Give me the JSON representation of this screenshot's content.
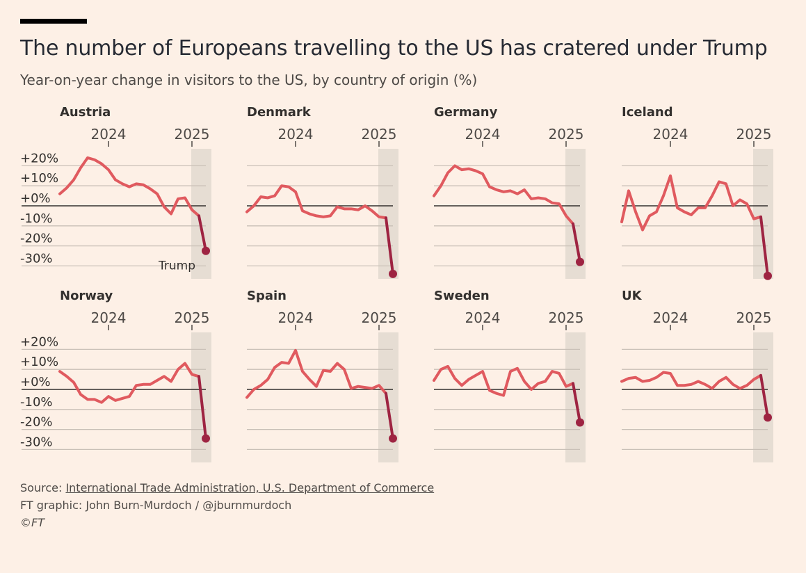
{
  "header": {
    "title": "The number of Europeans travelling to the US has cratered under Trump",
    "subtitle": "Year-on-year change in visitors to the US, by country of origin (%)"
  },
  "footer": {
    "source_label": "Source: ",
    "source_link": "International Trade Administration, U.S. Department of Commerce",
    "credit": "FT graphic: John Burn-Murdoch / @jburnmurdoch",
    "copyright": "©FT"
  },
  "colors": {
    "background": "#fdf0e6",
    "line": "#e05a5f",
    "trump_line": "#9e2442",
    "shade": "#e6ddd3",
    "grid": "#c9c0b7",
    "zero_line": "#33302e"
  },
  "chart_data": {
    "type": "line",
    "x_start": "2023-06",
    "x_end": "2025-03",
    "x_ticks": [
      {
        "label": "2024",
        "at": "2024-01"
      },
      {
        "label": "2025",
        "at": "2025-01"
      }
    ],
    "ylim": [
      -36,
      26
    ],
    "y_ticks": [
      {
        "value": 20,
        "label": "+20%"
      },
      {
        "value": 10,
        "label": "+10%"
      },
      {
        "value": 0,
        "label": "+0%"
      },
      {
        "value": -10,
        "label": "-10%"
      },
      {
        "value": -20,
        "label": "-20%"
      },
      {
        "value": -30,
        "label": "-30%"
      }
    ],
    "grid": true,
    "shaded_period": {
      "start": "2025-02",
      "end": "2025-03"
    },
    "annotation": {
      "text": "Trump",
      "panel": "Austria"
    },
    "series": [
      {
        "name": "Austria",
        "values": [
          6,
          9,
          13,
          19,
          24,
          23,
          21,
          18,
          13,
          11,
          9.5,
          11,
          10.5,
          8.5,
          6,
          -0.5,
          -4,
          3.5,
          4,
          -2,
          -5,
          -22.5
        ]
      },
      {
        "name": "Denmark",
        "values": [
          -3,
          0,
          4.5,
          4,
          5,
          10,
          9.5,
          7,
          -2.5,
          -4,
          -5,
          -5.5,
          -5,
          -0.5,
          -1.5,
          -1.5,
          -2,
          0,
          -2.5,
          -5.5,
          -6,
          -34
        ]
      },
      {
        "name": "Germany",
        "values": [
          5,
          10,
          16.5,
          20,
          18,
          18.5,
          17.5,
          16,
          9.5,
          8,
          7,
          7.5,
          6,
          8,
          3.5,
          4,
          3.5,
          1.5,
          1,
          -5,
          -9,
          -28
        ]
      },
      {
        "name": "Iceland",
        "values": [
          -8,
          7.5,
          -3,
          -12,
          -5,
          -3,
          5,
          15,
          -1,
          -3,
          -4.5,
          -1,
          -1,
          5,
          12,
          11,
          0,
          3,
          1,
          -6.5,
          -5.5,
          -35
        ]
      },
      {
        "name": "Norway",
        "values": [
          9,
          6.5,
          3.5,
          -2.5,
          -5,
          -5,
          -6.5,
          -3.5,
          -5.5,
          -4.5,
          -3.5,
          2,
          2.5,
          2.5,
          4.5,
          6.5,
          4,
          10,
          13,
          7.5,
          6.5,
          -24.5
        ]
      },
      {
        "name": "Spain",
        "values": [
          -4,
          0,
          2,
          5,
          11,
          13.5,
          13,
          19.5,
          9,
          5,
          1.5,
          9.5,
          9,
          13,
          10,
          0.5,
          1.5,
          1,
          0.5,
          2,
          -2,
          -24.5
        ]
      },
      {
        "name": "Sweden",
        "values": [
          4.5,
          10,
          11.5,
          5.5,
          2,
          5,
          7,
          9,
          -0.5,
          -2,
          -3,
          9,
          10.5,
          4,
          0,
          3,
          4,
          9,
          8,
          1.5,
          3,
          -16.5
        ]
      },
      {
        "name": "UK",
        "values": [
          4,
          5.5,
          6,
          4,
          4.5,
          6,
          8.5,
          8,
          2,
          2,
          2.5,
          4,
          2.5,
          0.5,
          4,
          6,
          2.5,
          0.5,
          2,
          5,
          7,
          -14
        ]
      }
    ]
  }
}
